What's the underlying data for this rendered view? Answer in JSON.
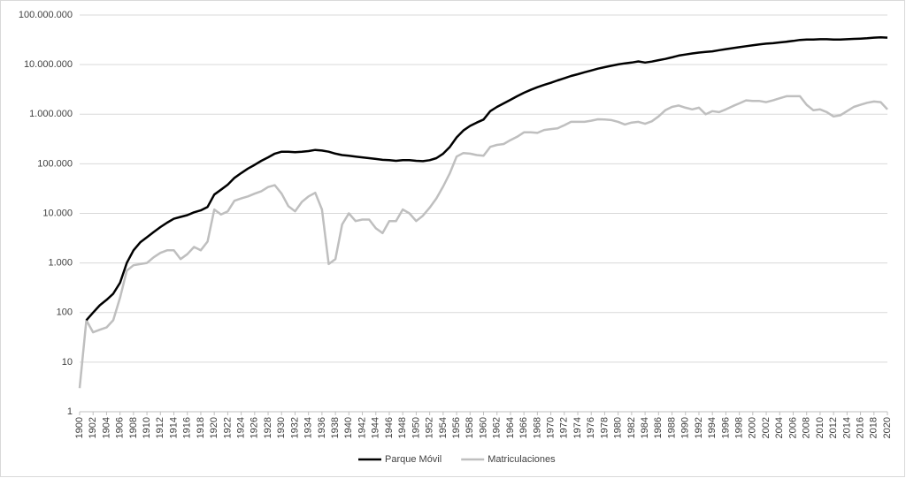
{
  "chart_data": {
    "type": "line",
    "log_scale": true,
    "grid": true,
    "legend": "bottom",
    "x": [
      1900,
      1901,
      1902,
      1903,
      1904,
      1905,
      1906,
      1907,
      1908,
      1909,
      1910,
      1911,
      1912,
      1913,
      1914,
      1915,
      1916,
      1917,
      1918,
      1919,
      1920,
      1921,
      1922,
      1923,
      1924,
      1925,
      1926,
      1927,
      1928,
      1929,
      1930,
      1931,
      1932,
      1933,
      1934,
      1935,
      1936,
      1937,
      1938,
      1939,
      1940,
      1941,
      1942,
      1943,
      1944,
      1945,
      1946,
      1947,
      1948,
      1949,
      1950,
      1951,
      1952,
      1953,
      1954,
      1955,
      1956,
      1957,
      1958,
      1959,
      1960,
      1961,
      1962,
      1963,
      1964,
      1965,
      1966,
      1967,
      1968,
      1969,
      1970,
      1971,
      1972,
      1973,
      1974,
      1975,
      1976,
      1977,
      1978,
      1979,
      1980,
      1981,
      1982,
      1983,
      1984,
      1985,
      1986,
      1987,
      1988,
      1989,
      1990,
      1991,
      1992,
      1993,
      1994,
      1995,
      1996,
      1997,
      1998,
      1999,
      2000,
      2001,
      2002,
      2003,
      2004,
      2005,
      2006,
      2007,
      2008,
      2009,
      2010,
      2011,
      2012,
      2013,
      2014,
      2015,
      2016,
      2017,
      2018,
      2019,
      2020
    ],
    "xlim": [
      1900,
      2020
    ],
    "xticks": [
      1900,
      1902,
      1904,
      1906,
      1908,
      1910,
      1912,
      1914,
      1916,
      1918,
      1920,
      1922,
      1924,
      1926,
      1928,
      1930,
      1932,
      1934,
      1936,
      1938,
      1940,
      1942,
      1944,
      1946,
      1948,
      1950,
      1952,
      1954,
      1956,
      1958,
      1960,
      1962,
      1964,
      1966,
      1968,
      1970,
      1972,
      1974,
      1976,
      1978,
      1980,
      1982,
      1984,
      1986,
      1988,
      1990,
      1992,
      1994,
      1996,
      1998,
      2000,
      2002,
      2004,
      2006,
      2008,
      2010,
      2012,
      2014,
      2016,
      2018,
      2020
    ],
    "ylim": [
      1,
      100000000
    ],
    "yticks": [
      1,
      10,
      100,
      {
        "value": 1000,
        "label": "1.000"
      },
      {
        "value": 10000,
        "label": "10.000"
      },
      {
        "value": 100000,
        "label": "100.000"
      },
      {
        "value": 1000000,
        "label": "1.000.000"
      },
      {
        "value": 10000000,
        "label": "10.000.000"
      },
      {
        "value": 100000000,
        "label": "100.000.000"
      }
    ],
    "series": [
      {
        "name": "Parque Móvil",
        "color": "#000000",
        "values": [
          null,
          70,
          100,
          140,
          180,
          240,
          400,
          1000,
          1800,
          2600,
          3300,
          4200,
          5300,
          6500,
          7800,
          8500,
          9200,
          10500,
          11500,
          13500,
          24000,
          30000,
          38000,
          52000,
          65000,
          80000,
          95000,
          115000,
          135000,
          160000,
          175000,
          175000,
          172000,
          175000,
          180000,
          190000,
          185000,
          175000,
          160000,
          150000,
          145000,
          140000,
          135000,
          130000,
          125000,
          120000,
          118000,
          115000,
          118000,
          118000,
          115000,
          113000,
          118000,
          130000,
          160000,
          220000,
          340000,
          470000,
          580000,
          680000,
          780000,
          1150000,
          1400000,
          1650000,
          1950000,
          2300000,
          2700000,
          3100000,
          3500000,
          3900000,
          4300000,
          4800000,
          5300000,
          5900000,
          6400000,
          7000000,
          7600000,
          8300000,
          8900000,
          9500000,
          10100000,
          10600000,
          11000000,
          11600000,
          11000000,
          11500000,
          12300000,
          13000000,
          14000000,
          15200000,
          16000000,
          16800000,
          17500000,
          18000000,
          18500000,
          19500000,
          20500000,
          21500000,
          22500000,
          23500000,
          24500000,
          25500000,
          26500000,
          27000000,
          28000000,
          29000000,
          30000000,
          31500000,
          32000000,
          32000000,
          32500000,
          32500000,
          32000000,
          32000000,
          32500000,
          33000000,
          33500000,
          34000000,
          35000000,
          35500000,
          35000000
        ]
      },
      {
        "name": "Matriculaciones",
        "color": "#bfbfbf",
        "values": [
          3,
          70,
          40,
          45,
          50,
          70,
          200,
          700,
          900,
          950,
          1000,
          1300,
          1600,
          1800,
          1800,
          1200,
          1500,
          2100,
          1800,
          2700,
          12000,
          9500,
          11000,
          18000,
          20000,
          22000,
          25000,
          28000,
          34000,
          37000,
          25000,
          14000,
          11000,
          17000,
          22000,
          26000,
          12000,
          950,
          1200,
          6000,
          10000,
          7000,
          7500,
          7500,
          5000,
          4000,
          7000,
          7000,
          12000,
          10000,
          7000,
          9000,
          13000,
          20000,
          35000,
          65000,
          140000,
          165000,
          160000,
          150000,
          145000,
          220000,
          240000,
          250000,
          300000,
          350000,
          430000,
          430000,
          420000,
          480000,
          500000,
          520000,
          600000,
          700000,
          700000,
          700000,
          740000,
          790000,
          780000,
          760000,
          700000,
          620000,
          680000,
          700000,
          640000,
          720000,
          900000,
          1200000,
          1400000,
          1500000,
          1350000,
          1250000,
          1350000,
          1000000,
          1150000,
          1100000,
          1250000,
          1450000,
          1650000,
          1900000,
          1850000,
          1850000,
          1750000,
          1900000,
          2100000,
          2300000,
          2300000,
          2300000,
          1550000,
          1200000,
          1250000,
          1100000,
          900000,
          950000,
          1150000,
          1400000,
          1550000,
          1700000,
          1800000,
          1750000,
          1250000
        ]
      }
    ]
  }
}
